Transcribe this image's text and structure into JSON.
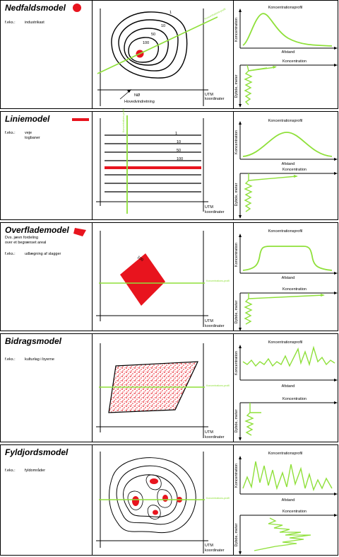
{
  "panels": [
    {
      "title": "Nedfaldsmodel",
      "subtitle": [],
      "example_key": "f.eks.:",
      "example_val": [
        "industrikast"
      ],
      "contours": [
        "1",
        "10",
        "50",
        "100"
      ],
      "wind_label": "NØ",
      "wind_caption": "Hovedvindretning",
      "utm": [
        "UTM",
        "koordinater"
      ],
      "green_tag": "Koncentrations-profil",
      "profile_title": "Koncentrationsprofil",
      "profile_ylabel": "Koncentration",
      "profile_xlabel": "Afstand",
      "depth_title": "Koncentration",
      "depth_ylabel": "Dybde, meter"
    },
    {
      "title": "Liniemodel",
      "subtitle": [],
      "example_key": "f.eks.:",
      "example_val": [
        "veje",
        "togbaner"
      ],
      "contours": [
        "1",
        "10",
        "50",
        "100"
      ],
      "utm": [
        "UTM",
        "koordinater"
      ],
      "green_tag": "Koncentrations-profil",
      "profile_title": "Koncentrationsprofil",
      "profile_ylabel": "Koncentration",
      "profile_xlabel": "Afstand",
      "depth_title": "Koncentration",
      "depth_ylabel": "Dybde, meter"
    },
    {
      "title": "Overflademodel",
      "subtitle": [
        "Dvs. jævn fordeling",
        "over et begrænset areal"
      ],
      "example_key": "f.eks.:",
      "example_val": [
        "udlægning af slagger"
      ],
      "contours": [
        "100"
      ],
      "utm": [
        "UTM",
        "koordinater"
      ],
      "green_tag": "Koncentrations-profil",
      "profile_title": "Koncentrationsprofil",
      "profile_ylabel": "Koncentration",
      "profile_xlabel": "Afstand",
      "depth_title": "Koncentration",
      "depth_ylabel": "Dybde, meter"
    },
    {
      "title": "Bidragsmodel",
      "subtitle": [],
      "example_key": "f.eks.:",
      "example_val": [
        "kulturlag i byerne"
      ],
      "contours": [],
      "utm": [
        "UTM",
        "koordinater"
      ],
      "green_tag": "Koncentrations-profil",
      "profile_title": "Koncentrationsprofil",
      "profile_ylabel": "Koncentration",
      "profile_xlabel": "Afstand",
      "depth_title": "Koncentration",
      "depth_ylabel": "Dybde, meter"
    },
    {
      "title": "Fyldjordsmodel",
      "subtitle": [],
      "example_key": "f.eks.:",
      "example_val": [
        "fyldområder"
      ],
      "contours": [],
      "utm": [
        "UTM",
        "koordinater"
      ],
      "green_tag": "Koncentrations-profil",
      "profile_title": "Koncentrationsprofil",
      "profile_ylabel": "Koncentration",
      "profile_xlabel": "Afstand",
      "depth_title": "Koncentration",
      "depth_ylabel": "Dybde, meter"
    }
  ],
  "colors": {
    "red": "#e8141e",
    "green": "#8fe03a",
    "black": "#000000"
  }
}
